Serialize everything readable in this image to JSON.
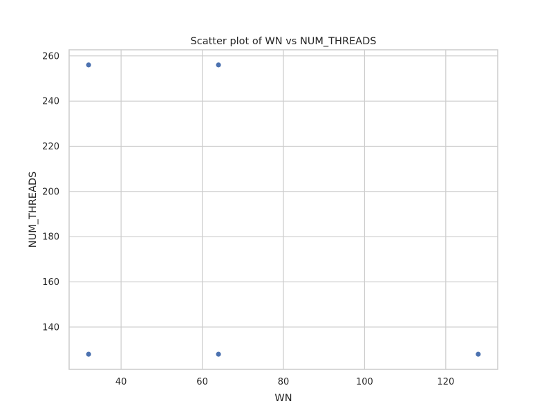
{
  "chart_data": {
    "type": "scatter",
    "title": "Scatter plot of WN vs NUM_THREADS",
    "xlabel": "WN",
    "ylabel": "NUM_THREADS",
    "xlim": [
      27.2,
      132.8
    ],
    "ylim": [
      121.3,
      262.7
    ],
    "xticks": [
      40,
      60,
      80,
      100,
      120
    ],
    "yticks": [
      140,
      160,
      180,
      200,
      220,
      240,
      260
    ],
    "grid": true,
    "point_color": "#4c72b0",
    "series": [
      {
        "x": [
          32,
          64,
          32,
          64,
          128
        ],
        "y": [
          256,
          256,
          128,
          128,
          128
        ]
      }
    ]
  }
}
